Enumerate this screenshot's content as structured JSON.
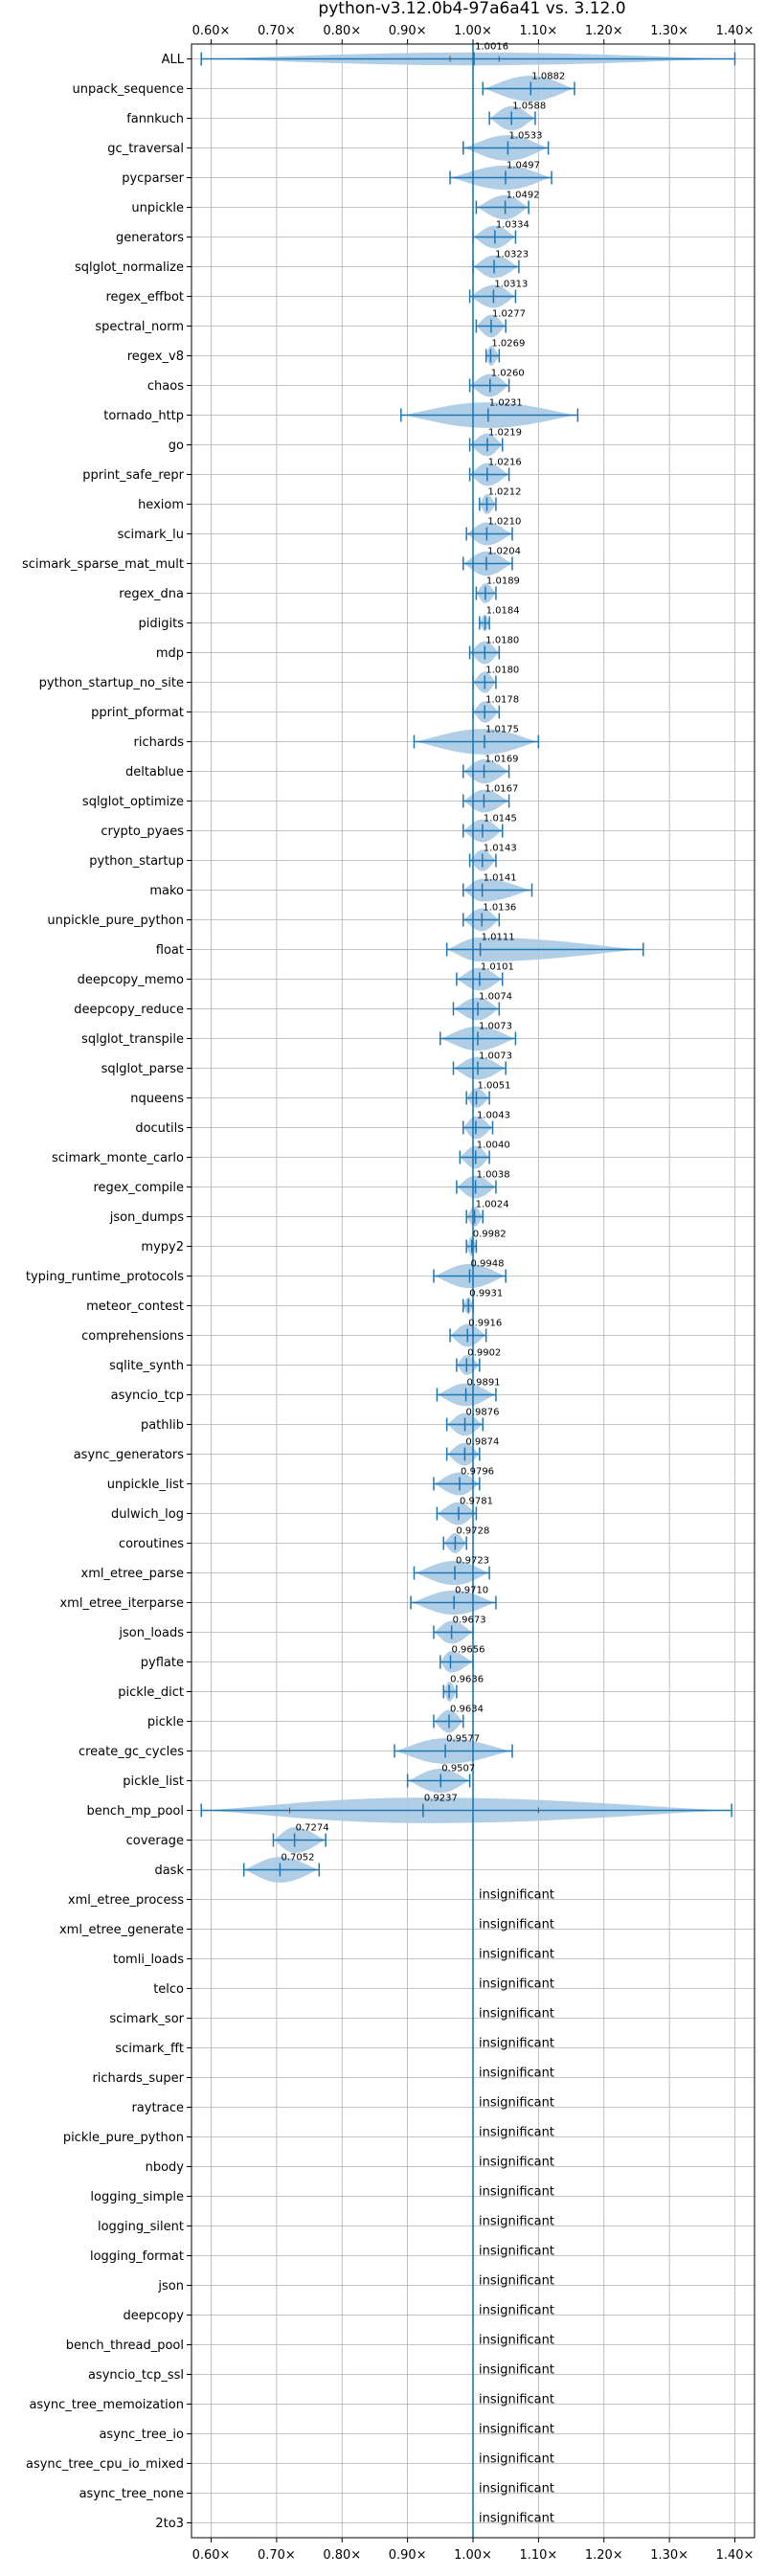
{
  "chart_data": {
    "type": "violin",
    "title": "python-v3.12.0b4-97a6a41 vs. 3.12.0",
    "xlim": [
      0.57,
      1.43
    ],
    "xticks": [
      0.6,
      0.7,
      0.8,
      0.9,
      1.0,
      1.1,
      1.2,
      1.3,
      1.4
    ],
    "xtick_labels": [
      "0.60×",
      "0.70×",
      "0.80×",
      "0.90×",
      "1.00×",
      "1.10×",
      "1.20×",
      "1.30×",
      "1.40×"
    ],
    "grid": true,
    "reference_line": 1.0,
    "colors": {
      "violin": "#a9c9e4",
      "whisker": "#1f77b4",
      "grid": "#b0b0b0",
      "axis": "#000000"
    },
    "insignificant_label": "insignificant",
    "benchmarks": [
      {
        "name": "ALL",
        "median": 1.0016,
        "label": "1.0016",
        "min": 0.585,
        "max": 1.4,
        "width": 0.45,
        "q1": 0.965,
        "q3": 1.04
      },
      {
        "name": "unpack_sequence",
        "median": 1.0882,
        "label": "1.0882",
        "min": 1.015,
        "max": 1.155,
        "width": 0.9
      },
      {
        "name": "fannkuch",
        "median": 1.0588,
        "label": "1.0588",
        "min": 1.025,
        "max": 1.095,
        "width": 0.85
      },
      {
        "name": "gc_traversal",
        "median": 1.0533,
        "label": "1.0533",
        "min": 0.985,
        "max": 1.115,
        "width": 0.9
      },
      {
        "name": "pycparser",
        "median": 1.0497,
        "label": "1.0497",
        "min": 0.965,
        "max": 1.12,
        "width": 0.85
      },
      {
        "name": "unpickle",
        "median": 1.0492,
        "label": "1.0492",
        "min": 1.005,
        "max": 1.085,
        "width": 0.85
      },
      {
        "name": "generators",
        "median": 1.0334,
        "label": "1.0334",
        "min": 1.0,
        "max": 1.065,
        "width": 0.8
      },
      {
        "name": "sqlglot_normalize",
        "median": 1.0323,
        "label": "1.0323",
        "min": 1.0,
        "max": 1.07,
        "width": 0.8
      },
      {
        "name": "regex_effbot",
        "median": 1.0313,
        "label": "1.0313",
        "min": 0.995,
        "max": 1.065,
        "width": 0.8
      },
      {
        "name": "spectral_norm",
        "median": 1.0277,
        "label": "1.0277",
        "min": 1.005,
        "max": 1.05,
        "width": 0.8
      },
      {
        "name": "regex_v8",
        "median": 1.0269,
        "label": "1.0269",
        "min": 1.02,
        "max": 1.04,
        "width": 0.7
      },
      {
        "name": "chaos",
        "median": 1.026,
        "label": "1.0260",
        "min": 0.995,
        "max": 1.055,
        "width": 0.8
      },
      {
        "name": "tornado_http",
        "median": 1.0231,
        "label": "1.0231",
        "min": 0.89,
        "max": 1.16,
        "width": 0.9
      },
      {
        "name": "go",
        "median": 1.0219,
        "label": "1.0219",
        "min": 0.995,
        "max": 1.045,
        "width": 0.8
      },
      {
        "name": "pprint_safe_repr",
        "median": 1.0216,
        "label": "1.0216",
        "min": 0.995,
        "max": 1.055,
        "width": 0.8
      },
      {
        "name": "hexiom",
        "median": 1.0212,
        "label": "1.0212",
        "min": 1.01,
        "max": 1.035,
        "width": 0.7
      },
      {
        "name": "scimark_lu",
        "median": 1.021,
        "label": "1.0210",
        "min": 0.99,
        "max": 1.06,
        "width": 0.8
      },
      {
        "name": "scimark_sparse_mat_mult",
        "median": 1.0204,
        "label": "1.0204",
        "min": 0.985,
        "max": 1.06,
        "width": 0.85
      },
      {
        "name": "regex_dna",
        "median": 1.0189,
        "label": "1.0189",
        "min": 1.005,
        "max": 1.035,
        "width": 0.7
      },
      {
        "name": "pidigits",
        "median": 1.0184,
        "label": "1.0184",
        "min": 1.01,
        "max": 1.025,
        "width": 0.6
      },
      {
        "name": "mdp",
        "median": 1.018,
        "label": "1.0180",
        "min": 0.995,
        "max": 1.04,
        "width": 0.8
      },
      {
        "name": "python_startup_no_site",
        "median": 1.018,
        "label": "1.0180",
        "min": 1.0,
        "max": 1.035,
        "width": 0.75
      },
      {
        "name": "pprint_pformat",
        "median": 1.0178,
        "label": "1.0178",
        "min": 1.0,
        "max": 1.04,
        "width": 0.75
      },
      {
        "name": "richards",
        "median": 1.0175,
        "label": "1.0175",
        "min": 0.91,
        "max": 1.1,
        "width": 0.9
      },
      {
        "name": "deltablue",
        "median": 1.0169,
        "label": "1.0169",
        "min": 0.985,
        "max": 1.055,
        "width": 0.85
      },
      {
        "name": "sqlglot_optimize",
        "median": 1.0167,
        "label": "1.0167",
        "min": 0.985,
        "max": 1.055,
        "width": 0.8
      },
      {
        "name": "crypto_pyaes",
        "median": 1.0145,
        "label": "1.0145",
        "min": 0.985,
        "max": 1.045,
        "width": 0.8
      },
      {
        "name": "python_startup",
        "median": 1.0143,
        "label": "1.0143",
        "min": 0.995,
        "max": 1.035,
        "width": 0.75
      },
      {
        "name": "mako",
        "median": 1.0141,
        "label": "1.0141",
        "min": 0.985,
        "max": 1.09,
        "width": 0.8
      },
      {
        "name": "unpickle_pure_python",
        "median": 1.0136,
        "label": "1.0136",
        "min": 0.985,
        "max": 1.04,
        "width": 0.8
      },
      {
        "name": "float",
        "median": 1.0111,
        "label": "1.0111",
        "min": 0.96,
        "max": 1.26,
        "width": 0.85
      },
      {
        "name": "deepcopy_memo",
        "median": 1.0101,
        "label": "1.0101",
        "min": 0.975,
        "max": 1.045,
        "width": 0.8
      },
      {
        "name": "deepcopy_reduce",
        "median": 1.0074,
        "label": "1.0074",
        "min": 0.97,
        "max": 1.04,
        "width": 0.8
      },
      {
        "name": "sqlglot_transpile",
        "median": 1.0073,
        "label": "1.0073",
        "min": 0.95,
        "max": 1.065,
        "width": 0.85
      },
      {
        "name": "sqlglot_parse",
        "median": 1.0073,
        "label": "1.0073",
        "min": 0.97,
        "max": 1.05,
        "width": 0.8
      },
      {
        "name": "nqueens",
        "median": 1.0051,
        "label": "1.0051",
        "min": 0.99,
        "max": 1.025,
        "width": 0.7
      },
      {
        "name": "docutils",
        "median": 1.0043,
        "label": "1.0043",
        "min": 0.985,
        "max": 1.03,
        "width": 0.8
      },
      {
        "name": "scimark_monte_carlo",
        "median": 1.004,
        "label": "1.0040",
        "min": 0.98,
        "max": 1.025,
        "width": 0.8
      },
      {
        "name": "regex_compile",
        "median": 1.0038,
        "label": "1.0038",
        "min": 0.975,
        "max": 1.035,
        "width": 0.8
      },
      {
        "name": "json_dumps",
        "median": 1.0024,
        "label": "1.0024",
        "min": 0.99,
        "max": 1.015,
        "width": 0.7
      },
      {
        "name": "mypy2",
        "median": 0.9982,
        "label": "0.9982",
        "min": 0.99,
        "max": 1.005,
        "width": 0.7
      },
      {
        "name": "typing_runtime_protocols",
        "median": 0.9948,
        "label": "0.9948",
        "min": 0.94,
        "max": 1.05,
        "width": 0.85
      },
      {
        "name": "meteor_contest",
        "median": 0.9931,
        "label": "0.9931",
        "min": 0.985,
        "max": 1.0,
        "width": 0.6
      },
      {
        "name": "comprehensions",
        "median": 0.9916,
        "label": "0.9916",
        "min": 0.965,
        "max": 1.02,
        "width": 0.8
      },
      {
        "name": "sqlite_synth",
        "median": 0.9902,
        "label": "0.9902",
        "min": 0.975,
        "max": 1.01,
        "width": 0.7
      },
      {
        "name": "asyncio_tcp",
        "median": 0.9891,
        "label": "0.9891",
        "min": 0.945,
        "max": 1.035,
        "width": 0.8
      },
      {
        "name": "pathlib",
        "median": 0.9876,
        "label": "0.9876",
        "min": 0.96,
        "max": 1.015,
        "width": 0.8
      },
      {
        "name": "async_generators",
        "median": 0.9874,
        "label": "0.9874",
        "min": 0.96,
        "max": 1.01,
        "width": 0.8
      },
      {
        "name": "unpickle_list",
        "median": 0.9796,
        "label": "0.9796",
        "min": 0.94,
        "max": 1.01,
        "width": 0.8
      },
      {
        "name": "dulwich_log",
        "median": 0.9781,
        "label": "0.9781",
        "min": 0.945,
        "max": 1.005,
        "width": 0.8
      },
      {
        "name": "coroutines",
        "median": 0.9728,
        "label": "0.9728",
        "min": 0.955,
        "max": 0.99,
        "width": 0.7
      },
      {
        "name": "xml_etree_parse",
        "median": 0.9723,
        "label": "0.9723",
        "min": 0.91,
        "max": 1.025,
        "width": 0.85
      },
      {
        "name": "xml_etree_iterparse",
        "median": 0.971,
        "label": "0.9710",
        "min": 0.905,
        "max": 1.035,
        "width": 0.85
      },
      {
        "name": "json_loads",
        "median": 0.9673,
        "label": "0.9673",
        "min": 0.94,
        "max": 1.0,
        "width": 0.8
      },
      {
        "name": "pyflate",
        "median": 0.9656,
        "label": "0.9656",
        "min": 0.95,
        "max": 1.0,
        "width": 0.75
      },
      {
        "name": "pickle_dict",
        "median": 0.9636,
        "label": "0.9636",
        "min": 0.955,
        "max": 0.975,
        "width": 0.7
      },
      {
        "name": "pickle",
        "median": 0.9634,
        "label": "0.9634",
        "min": 0.94,
        "max": 0.985,
        "width": 0.8
      },
      {
        "name": "create_gc_cycles",
        "median": 0.9577,
        "label": "0.9577",
        "min": 0.88,
        "max": 1.06,
        "width": 0.9
      },
      {
        "name": "pickle_list",
        "median": 0.9507,
        "label": "0.9507",
        "min": 0.9,
        "max": 0.995,
        "width": 0.85
      },
      {
        "name": "bench_mp_pool",
        "median": 0.9237,
        "label": "0.9237",
        "min": 0.585,
        "max": 1.395,
        "width": 0.9,
        "q1": 0.72,
        "q3": 1.1
      },
      {
        "name": "coverage",
        "median": 0.7274,
        "label": "0.7274",
        "min": 0.695,
        "max": 0.775,
        "width": 0.9
      },
      {
        "name": "dask",
        "median": 0.7052,
        "label": "0.7052",
        "min": 0.65,
        "max": 0.765,
        "width": 0.9
      },
      {
        "name": "xml_etree_process",
        "insignificant": true
      },
      {
        "name": "xml_etree_generate",
        "insignificant": true
      },
      {
        "name": "tomli_loads",
        "insignificant": true
      },
      {
        "name": "telco",
        "insignificant": true
      },
      {
        "name": "scimark_sor",
        "insignificant": true
      },
      {
        "name": "scimark_fft",
        "insignificant": true
      },
      {
        "name": "richards_super",
        "insignificant": true
      },
      {
        "name": "raytrace",
        "insignificant": true
      },
      {
        "name": "pickle_pure_python",
        "insignificant": true
      },
      {
        "name": "nbody",
        "insignificant": true
      },
      {
        "name": "logging_simple",
        "insignificant": true
      },
      {
        "name": "logging_silent",
        "insignificant": true
      },
      {
        "name": "logging_format",
        "insignificant": true
      },
      {
        "name": "json",
        "insignificant": true
      },
      {
        "name": "deepcopy",
        "insignificant": true
      },
      {
        "name": "bench_thread_pool",
        "insignificant": true
      },
      {
        "name": "asyncio_tcp_ssl",
        "insignificant": true
      },
      {
        "name": "async_tree_memoization",
        "insignificant": true
      },
      {
        "name": "async_tree_io",
        "insignificant": true
      },
      {
        "name": "async_tree_cpu_io_mixed",
        "insignificant": true
      },
      {
        "name": "async_tree_none",
        "insignificant": true
      },
      {
        "name": "2to3",
        "insignificant": true
      }
    ]
  }
}
